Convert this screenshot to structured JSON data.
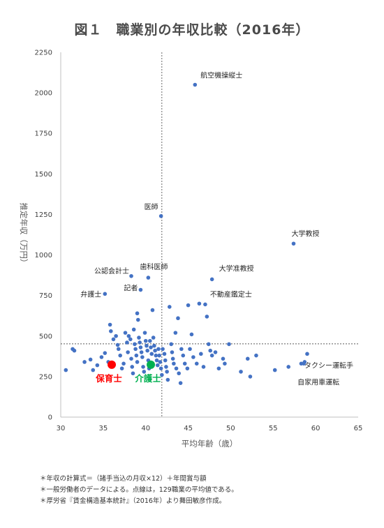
{
  "title": "図１　職業別の年収比較（2016年）",
  "notes": [
    "＊年収の計算式＝（諸手当込の月収×12）＋年間賞与額",
    "＊一般労働者のデータによる。点線は，129職業の平均値である。",
    "＊厚労省『賃金構造基本統計』（2016年）より舞田敏彦作成。"
  ],
  "colors": {
    "point": "#4472c4",
    "hoiku": "#ff0000",
    "kaigo": "#00b050",
    "axis": "#bfbfbf",
    "text": "#404040",
    "reference_line": "#404040"
  },
  "chart_data": {
    "type": "scatter",
    "xlabel": "平均年齢（歳）",
    "ylabel": "推定年収（万円）",
    "xlim": [
      30,
      65
    ],
    "ylim": [
      0,
      2250
    ],
    "xticks": [
      "30",
      "35",
      "40",
      "45",
      "50",
      "55",
      "60",
      "65"
    ],
    "yticks": [
      "0",
      "250",
      "500",
      "750",
      "1000",
      "1250",
      "1500",
      "1750",
      "2000",
      "2250"
    ],
    "grid": false,
    "reference_lines": {
      "x_mean": 41.9,
      "y_mean": 452
    },
    "highlighted": [
      {
        "label": "保育士",
        "x": 36.0,
        "y": 323,
        "color": "#ff0000"
      },
      {
        "label": "介護士",
        "x": 40.6,
        "y": 323,
        "color": "#00b050"
      }
    ],
    "annotations": [
      {
        "label": "航空機操縦士",
        "x": 45.8,
        "y": 2050
      },
      {
        "label": "医師",
        "x": 41.8,
        "y": 1240
      },
      {
        "label": "大学教授",
        "x": 57.4,
        "y": 1070
      },
      {
        "label": "大学准教授",
        "x": 47.8,
        "y": 850
      },
      {
        "label": "歯科医師",
        "x": 40.3,
        "y": 860
      },
      {
        "label": "公認会計士",
        "x": 38.3,
        "y": 870
      },
      {
        "label": "記者",
        "x": 39.4,
        "y": 785
      },
      {
        "label": "弁護士",
        "x": 35.2,
        "y": 760
      },
      {
        "label": "不動産鑑定士",
        "x": 47.0,
        "y": 695
      },
      {
        "label": "タクシー運転手",
        "x": 59.0,
        "y": 390
      },
      {
        "label": "自家用車運転",
        "x": 58.6,
        "y": 330
      }
    ],
    "points": [
      [
        30.6,
        290
      ],
      [
        31.4,
        420
      ],
      [
        31.6,
        410
      ],
      [
        32.8,
        340
      ],
      [
        33.5,
        355
      ],
      [
        33.8,
        290
      ],
      [
        34.3,
        320
      ],
      [
        34.8,
        370
      ],
      [
        35.2,
        395
      ],
      [
        35.6,
        340
      ],
      [
        35.8,
        570
      ],
      [
        35.9,
        530
      ],
      [
        36.2,
        480
      ],
      [
        36.5,
        500
      ],
      [
        36.7,
        445
      ],
      [
        36.8,
        420
      ],
      [
        37.0,
        380
      ],
      [
        37.2,
        300
      ],
      [
        37.4,
        330
      ],
      [
        37.6,
        520
      ],
      [
        37.8,
        460
      ],
      [
        37.9,
        400
      ],
      [
        38.0,
        500
      ],
      [
        38.2,
        480
      ],
      [
        38.3,
        360
      ],
      [
        38.4,
        310
      ],
      [
        38.5,
        270
      ],
      [
        38.6,
        540
      ],
      [
        38.7,
        450
      ],
      [
        38.8,
        420
      ],
      [
        38.9,
        380
      ],
      [
        39.0,
        340
      ],
      [
        39.0,
        640
      ],
      [
        39.1,
        600
      ],
      [
        39.2,
        490
      ],
      [
        39.3,
        460
      ],
      [
        39.4,
        430
      ],
      [
        39.5,
        400
      ],
      [
        39.6,
        370
      ],
      [
        39.7,
        310
      ],
      [
        39.8,
        280
      ],
      [
        39.9,
        520
      ],
      [
        40.0,
        470
      ],
      [
        40.1,
        440
      ],
      [
        40.2,
        410
      ],
      [
        40.3,
        350
      ],
      [
        40.4,
        300
      ],
      [
        40.5,
        470
      ],
      [
        40.6,
        430
      ],
      [
        40.7,
        390
      ],
      [
        40.8,
        660
      ],
      [
        40.9,
        490
      ],
      [
        41.0,
        440
      ],
      [
        41.1,
        410
      ],
      [
        41.2,
        380
      ],
      [
        41.3,
        350
      ],
      [
        41.4,
        320
      ],
      [
        41.5,
        420
      ],
      [
        41.6,
        380
      ],
      [
        41.7,
        340
      ],
      [
        41.8,
        300
      ],
      [
        41.9,
        260
      ],
      [
        42.0,
        420
      ],
      [
        42.2,
        390
      ],
      [
        42.3,
        350
      ],
      [
        42.4,
        310
      ],
      [
        42.5,
        280
      ],
      [
        42.6,
        230
      ],
      [
        42.8,
        680
      ],
      [
        43.0,
        450
      ],
      [
        43.1,
        400
      ],
      [
        43.2,
        360
      ],
      [
        43.3,
        330
      ],
      [
        43.5,
        520
      ],
      [
        43.6,
        300
      ],
      [
        43.8,
        610
      ],
      [
        43.9,
        270
      ],
      [
        44.1,
        210
      ],
      [
        44.2,
        420
      ],
      [
        44.4,
        380
      ],
      [
        44.6,
        330
      ],
      [
        44.9,
        300
      ],
      [
        45.0,
        690
      ],
      [
        45.2,
        420
      ],
      [
        45.4,
        510
      ],
      [
        45.6,
        370
      ],
      [
        46.0,
        330
      ],
      [
        46.3,
        700
      ],
      [
        46.5,
        390
      ],
      [
        46.8,
        310
      ],
      [
        47.2,
        620
      ],
      [
        47.4,
        450
      ],
      [
        47.6,
        410
      ],
      [
        47.8,
        380
      ],
      [
        48.2,
        400
      ],
      [
        48.6,
        300
      ],
      [
        49.1,
        360
      ],
      [
        49.3,
        330
      ],
      [
        49.8,
        450
      ],
      [
        51.2,
        280
      ],
      [
        52.0,
        360
      ],
      [
        52.3,
        250
      ],
      [
        53.0,
        380
      ],
      [
        55.2,
        290
      ],
      [
        56.8,
        310
      ],
      [
        58.3,
        330
      ],
      [
        58.7,
        340
      ]
    ]
  }
}
